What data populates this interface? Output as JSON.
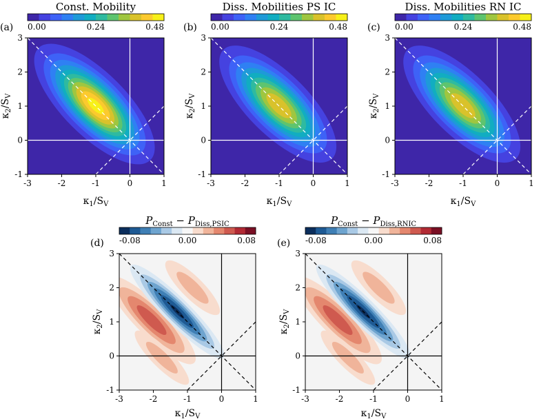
{
  "colorbar_top": {
    "ticks": [
      "0.00",
      "0.24",
      "0.48"
    ],
    "colors": [
      "#3e26a8",
      "#4542e0",
      "#3e62f7",
      "#2f80f3",
      "#1e9ad8",
      "#11adc1",
      "#2fbaa0",
      "#5ec46f",
      "#9fc640",
      "#d9c22b",
      "#fcca2e",
      "#f7f019"
    ]
  },
  "colorbar_bottom": {
    "ticks": [
      "-0.08",
      "0.00",
      "0.08"
    ],
    "colors": [
      "#0b2e5c",
      "#1e5a94",
      "#3f7fb5",
      "#6ea4cf",
      "#a9c9e5",
      "#dbe8f3",
      "#f7f7f7",
      "#f8dccd",
      "#f0b49a",
      "#e4876e",
      "#cf5a4f",
      "#b22a34",
      "#7a0f24"
    ]
  },
  "chart_data": [
    {
      "id": "a",
      "panel_label": "(a)",
      "type": "contour",
      "title": "Const. Mobility",
      "xlabel": "κ₁/S_V",
      "ylabel": "κ₂/S_V",
      "xlim": [
        -3,
        1
      ],
      "ylim": [
        -1,
        3
      ],
      "xticks": [
        "-3",
        "-2",
        "-1",
        "0",
        "1"
      ],
      "yticks": [
        "-1",
        "0",
        "1",
        "2",
        "3"
      ],
      "peak": {
        "x": -1.0,
        "y": 1.0,
        "value": 0.46
      }
    },
    {
      "id": "b",
      "panel_label": "(b)",
      "type": "contour",
      "title": "Diss. Mobilities PS IC",
      "xlabel": "κ₁/S_V",
      "ylabel": "κ₂/S_V",
      "xlim": [
        -3,
        1
      ],
      "ylim": [
        -1,
        3
      ],
      "xticks": [
        "-3",
        "-2",
        "-1",
        "0",
        "1"
      ],
      "yticks": [
        "-1",
        "0",
        "1",
        "2",
        "3"
      ],
      "peak": {
        "x": -1.0,
        "y": 1.0,
        "value": 0.4
      }
    },
    {
      "id": "c",
      "panel_label": "(c)",
      "type": "contour",
      "title": "Diss. Mobilities RN IC",
      "xlabel": "κ₁/S_V",
      "ylabel": "κ₂/S_V",
      "xlim": [
        -3,
        1
      ],
      "ylim": [
        -1,
        3
      ],
      "xticks": [
        "-3",
        "-2",
        "-1",
        "0",
        "1"
      ],
      "yticks": [
        "-1",
        "0",
        "1",
        "2",
        "3"
      ],
      "peak": {
        "x": -1.0,
        "y": 1.0,
        "value": 0.4
      }
    },
    {
      "id": "d",
      "panel_label": "(d)",
      "type": "contour",
      "title_main_1": "P",
      "title_sub_1": "Const",
      "title_op": " − ",
      "title_main_2": "P",
      "title_sub_2": "Diss,PSIC",
      "xlabel": "κ₁/S_V",
      "ylabel": "κ₂/S_V",
      "xlim": [
        -3,
        1
      ],
      "ylim": [
        -1,
        3
      ],
      "xticks": [
        "-3",
        "-2",
        "-1",
        "0",
        "1"
      ],
      "yticks": [
        "-1",
        "0",
        "1",
        "2",
        "3"
      ],
      "extrema": {
        "min": {
          "x": -1.3,
          "y": 1.3,
          "value": -0.075
        },
        "max": {
          "x": -2.0,
          "y": 1.0,
          "value": 0.03
        }
      }
    },
    {
      "id": "e",
      "panel_label": "(e)",
      "type": "contour",
      "title_main_1": "P",
      "title_sub_1": "Const",
      "title_op": " − ",
      "title_main_2": "P",
      "title_sub_2": "Diss,RNIC",
      "xlabel": "κ₁/S_V",
      "ylabel": "κ₂/S_V",
      "xlim": [
        -3,
        1
      ],
      "ylim": [
        -1,
        3
      ],
      "xticks": [
        "-3",
        "-2",
        "-1",
        "0",
        "1"
      ],
      "yticks": [
        "-1",
        "0",
        "1",
        "2",
        "3"
      ],
      "extrema": {
        "min": {
          "x": -1.3,
          "y": 1.3,
          "value": -0.075
        },
        "max": {
          "x": -2.0,
          "y": 1.0,
          "value": 0.03
        }
      }
    }
  ]
}
